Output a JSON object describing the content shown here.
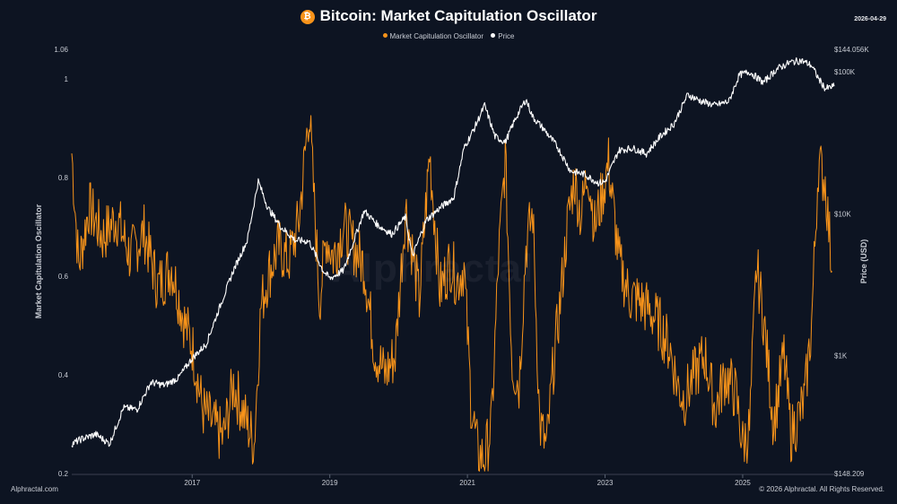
{
  "title": "Bitcoin: Market Capitulation Oscillator",
  "badge": "₿",
  "date": "2026-04-29",
  "footer_left": "Alphractal.com",
  "footer_right": "© 2026 Alphractal. All Rights Reserved.",
  "watermark": "Alphractal",
  "colors": {
    "oscillator": "#f7931a",
    "price": "#ffffff",
    "background": "#0d1422"
  },
  "chart_data": {
    "type": "line",
    "title": "Bitcoin: Market Capitulation Oscillator",
    "ylabel": "Market Capitulation Oscillator",
    "y2label": "Price (USD)",
    "xlabel": "",
    "legend_position": "top-center",
    "grid": false,
    "ylim": [
      0.2,
      1.06
    ],
    "y2lim_log": [
      148.209,
      144056
    ],
    "xlim": [
      2015.25,
      2026.33
    ],
    "y_ticks": [
      "0.2",
      "0.4",
      "0.6",
      "0.8",
      "1",
      "1.06"
    ],
    "y2_ticks": [
      {
        "value": 148.209,
        "label": "$148.209"
      },
      {
        "value": 1000,
        "label": "$1K"
      },
      {
        "value": 10000,
        "label": "$10K"
      },
      {
        "value": 100000,
        "label": "$100K"
      },
      {
        "value": 144056,
        "label": "$144.056K"
      }
    ],
    "x_ticks": [
      {
        "value": 2017,
        "label": "2017"
      },
      {
        "value": 2019,
        "label": "2019"
      },
      {
        "value": 2021,
        "label": "2021"
      },
      {
        "value": 2023,
        "label": "2023"
      },
      {
        "value": 2025,
        "label": "2025"
      }
    ],
    "series": [
      {
        "name": "Market Capitulation Oscillator",
        "axis": "left",
        "x": [
          2015.25,
          2015.35,
          2015.5,
          2015.7,
          2015.9,
          2016.1,
          2016.3,
          2016.5,
          2016.7,
          2016.9,
          2017.0,
          2017.15,
          2017.3,
          2017.45,
          2017.6,
          2017.75,
          2017.9,
          2018.0,
          2018.1,
          2018.25,
          2018.4,
          2018.55,
          2018.7,
          2018.85,
          2018.95,
          2019.05,
          2019.2,
          2019.35,
          2019.5,
          2019.65,
          2019.8,
          2019.95,
          2020.1,
          2020.2,
          2020.3,
          2020.45,
          2020.6,
          2020.75,
          2020.85,
          2020.95,
          2021.05,
          2021.15,
          2021.25,
          2021.35,
          2021.45,
          2021.55,
          2021.65,
          2021.75,
          2021.85,
          2021.95,
          2022.05,
          2022.15,
          2022.25,
          2022.35,
          2022.45,
          2022.55,
          2022.65,
          2022.75,
          2022.85,
          2022.95,
          2023.05,
          2023.2,
          2023.35,
          2023.5,
          2023.65,
          2023.8,
          2023.95,
          2024.05,
          2024.15,
          2024.3,
          2024.45,
          2024.6,
          2024.75,
          2024.9,
          2025.0,
          2025.1,
          2025.2,
          2025.3,
          2025.45,
          2025.6,
          2025.7,
          2025.8,
          2025.9,
          2026.0,
          2026.1,
          2026.2,
          2026.3
        ],
        "y": [
          0.85,
          0.62,
          0.74,
          0.68,
          0.72,
          0.64,
          0.69,
          0.58,
          0.62,
          0.5,
          0.46,
          0.33,
          0.3,
          0.27,
          0.38,
          0.32,
          0.26,
          0.54,
          0.6,
          0.66,
          0.63,
          0.71,
          0.94,
          0.55,
          0.68,
          0.64,
          0.7,
          0.66,
          0.62,
          0.45,
          0.4,
          0.44,
          0.74,
          0.65,
          0.55,
          0.85,
          0.57,
          0.63,
          0.59,
          0.62,
          0.35,
          0.24,
          0.23,
          0.3,
          0.63,
          0.84,
          0.42,
          0.38,
          0.66,
          0.73,
          0.3,
          0.25,
          0.42,
          0.55,
          0.7,
          0.8,
          0.72,
          0.82,
          0.7,
          0.76,
          0.83,
          0.63,
          0.56,
          0.55,
          0.53,
          0.5,
          0.45,
          0.38,
          0.35,
          0.4,
          0.44,
          0.33,
          0.4,
          0.36,
          0.26,
          0.29,
          0.62,
          0.52,
          0.3,
          0.44,
          0.28,
          0.31,
          0.35,
          0.5,
          0.83,
          0.79,
          0.61
        ],
        "unit": "ratio"
      },
      {
        "name": "Price",
        "axis": "right",
        "x": [
          2015.25,
          2015.4,
          2015.6,
          2015.8,
          2016.0,
          2016.2,
          2016.4,
          2016.6,
          2016.8,
          2017.0,
          2017.2,
          2017.4,
          2017.6,
          2017.8,
          2017.96,
          2018.1,
          2018.3,
          2018.5,
          2018.7,
          2018.9,
          2019.0,
          2019.2,
          2019.5,
          2019.7,
          2019.9,
          2020.1,
          2020.2,
          2020.4,
          2020.6,
          2020.8,
          2020.95,
          2021.1,
          2021.25,
          2021.4,
          2021.55,
          2021.7,
          2021.85,
          2021.95,
          2022.1,
          2022.3,
          2022.5,
          2022.7,
          2022.9,
          2023.0,
          2023.2,
          2023.4,
          2023.6,
          2023.8,
          2024.0,
          2024.2,
          2024.4,
          2024.6,
          2024.8,
          2024.95,
          2025.1,
          2025.3,
          2025.5,
          2025.7,
          2025.85,
          2026.0,
          2026.1,
          2026.2,
          2026.33
        ],
        "y": [
          240,
          260,
          280,
          240,
          430,
          420,
          650,
          620,
          700,
          960,
          1200,
          2200,
          4000,
          6500,
          17000,
          11000,
          8000,
          6500,
          6400,
          4000,
          3500,
          4000,
          10500,
          8300,
          7200,
          9500,
          5000,
          9000,
          11000,
          13000,
          29000,
          40000,
          58000,
          35000,
          32000,
          47000,
          64000,
          48000,
          40000,
          30000,
          20000,
          19000,
          16500,
          16800,
          28000,
          29000,
          26500,
          35000,
          43000,
          69000,
          62000,
          58000,
          62000,
          95000,
          100000,
          84000,
          105000,
          117000,
          120000,
          111000,
          90000,
          76000,
          79000
        ],
        "unit": "USD"
      }
    ]
  }
}
